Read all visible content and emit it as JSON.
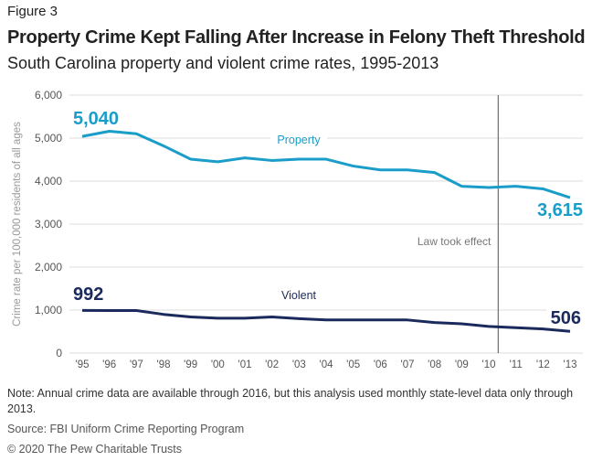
{
  "figure_label": "Figure 3",
  "title": "Property Crime Kept Falling After Increase in Felony Theft Threshold",
  "subtitle": "South Carolina property and violent crime rates, 1995-2013",
  "note": "Note: Annual crime data are available through 2016, but this analysis used monthly state-level data only through 2013.",
  "source": "Source: FBI Uniform Crime Reporting Program",
  "copyright": "© 2020 The Pew Charitable Trusts",
  "chart_data": {
    "type": "line",
    "ylabel": "Crime rate per 100,000 residents of all ages",
    "xlabel": "",
    "ylim": [
      0,
      6000
    ],
    "yticks": [
      0,
      1000,
      2000,
      3000,
      4000,
      5000,
      6000
    ],
    "ytick_labels": [
      "0",
      "1,000",
      "2,000",
      "3,000",
      "4,000",
      "5,000",
      "6,000"
    ],
    "categories": [
      "'95",
      "'96",
      "'97",
      "'98",
      "'99",
      "'00",
      "'01",
      "'02",
      "'03",
      "'04",
      "'05",
      "'06",
      "'07",
      "'08",
      "'09",
      "'10",
      "'11",
      "'12",
      "'13"
    ],
    "grid": true,
    "series": [
      {
        "name": "Property",
        "color": "#1a9dc9",
        "values": [
          5040,
          5160,
          5100,
          4820,
          4510,
          4450,
          4540,
          4480,
          4510,
          4510,
          4350,
          4260,
          4260,
          4200,
          3880,
          3850,
          3880,
          3820,
          3615
        ],
        "start_label": "5,040",
        "end_label": "3,615"
      },
      {
        "name": "Violent",
        "color": "#1b2a5c",
        "values": [
          992,
          990,
          990,
          900,
          840,
          810,
          810,
          840,
          800,
          770,
          770,
          770,
          770,
          710,
          680,
          620,
          590,
          560,
          506
        ],
        "start_label": "992",
        "end_label": "506"
      }
    ],
    "annotations": [
      {
        "text": "Law took effect",
        "x": 2010.35
      }
    ]
  }
}
